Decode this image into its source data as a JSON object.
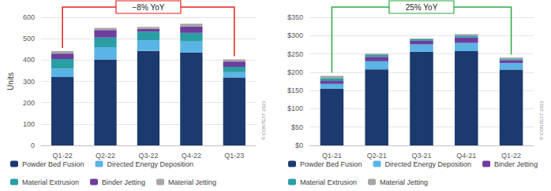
{
  "chart_data": [
    {
      "type": "bar",
      "stacked": true,
      "grid": true,
      "legend": "bottom",
      "y_label": "Units",
      "annotation": {
        "text": "−8% YoY",
        "color": "#e3211c"
      },
      "credit": "© CONTEXT 2023",
      "categories": [
        "Q1-22",
        "Q2-22",
        "Q3-22",
        "Q4-22",
        "Q1-23"
      ],
      "ylim": [
        0,
        600
      ],
      "yticks": [
        0,
        100,
        200,
        300,
        400,
        500,
        600
      ],
      "series": [
        {
          "name": "Powder Bed Fusion",
          "color": "#1c3a6e",
          "values": [
            320,
            402,
            443,
            435,
            318
          ]
        },
        {
          "name": "Directed Energy Deposition",
          "color": "#5ab4e5",
          "values": [
            40,
            58,
            50,
            52,
            25
          ]
        },
        {
          "name": "Material Extrusion",
          "color": "#2a9ea3",
          "values": [
            45,
            45,
            40,
            40,
            25
          ]
        },
        {
          "name": "Binder Jetting",
          "color": "#6f3d9e",
          "values": [
            25,
            35,
            12,
            30,
            25
          ]
        },
        {
          "name": "Material Jetting",
          "color": "#a6a6a6",
          "values": [
            12,
            10,
            10,
            13,
            10
          ]
        }
      ]
    },
    {
      "type": "bar",
      "stacked": true,
      "grid": true,
      "legend": "bottom",
      "annotation": {
        "text": "25% YoY",
        "color": "#2aa845"
      },
      "credit": "© CONTEXT 2023",
      "categories": [
        "Q1-21",
        "Q2-21",
        "Q3-21",
        "Q4-21",
        "Q1-22"
      ],
      "ylim": [
        0,
        350
      ],
      "yticks": [
        {
          "value": 0,
          "label": "$0"
        },
        {
          "value": 50,
          "label": "$50"
        },
        {
          "value": 100,
          "label": "$100"
        },
        {
          "value": 150,
          "label": "$150"
        },
        {
          "value": 200,
          "label": "$200"
        },
        {
          "value": 250,
          "label": "$250"
        },
        {
          "value": 300,
          "label": "$300"
        },
        {
          "value": 350,
          "label": "$350"
        }
      ],
      "series": [
        {
          "name": "Powder Bed Fusion",
          "color": "#1c3a6e",
          "values": [
            155,
            208,
            256,
            258,
            207
          ]
        },
        {
          "name": "Directed Energy Deposition",
          "color": "#5ab4e5",
          "values": [
            13,
            22,
            20,
            22,
            18
          ]
        },
        {
          "name": "Binder Jetting",
          "color": "#6f3d9e",
          "values": [
            8,
            12,
            10,
            15,
            8
          ]
        },
        {
          "name": "Material Extrusion",
          "color": "#2a9ea3",
          "values": [
            8,
            5,
            4,
            5,
            3
          ]
        },
        {
          "name": "Material Jetting",
          "color": "#a6a6a6",
          "values": [
            6,
            4,
            2,
            4,
            4
          ]
        }
      ]
    }
  ]
}
